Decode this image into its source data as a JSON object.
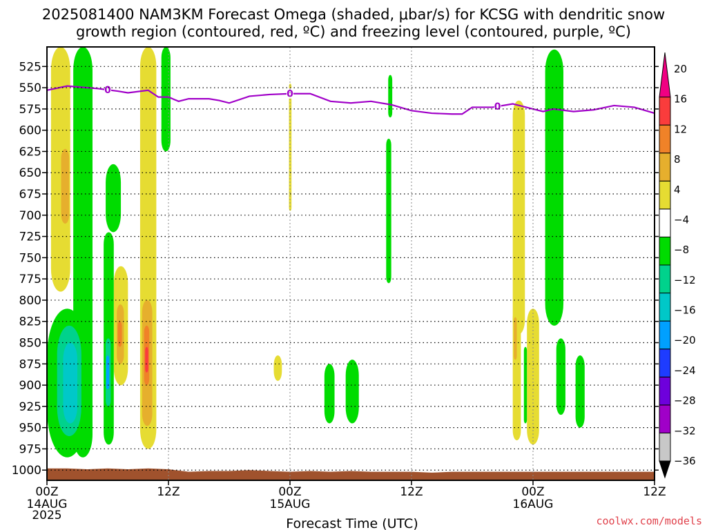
{
  "header": {
    "title_line1": "2025081400 NAM3KM Forecast Omega (shaded, μbar/s) for KCSG with dendritic snow",
    "title_line2": "growth region (contoured, red, ºC) and freezing level (contoured, purple, ºC)"
  },
  "credit": "coolwx.com/models",
  "chart_data": {
    "type": "heatmap",
    "xlabel": "Forecast Time (UTC)",
    "x_unit": "forecast hours from 2025-08-14 00Z",
    "xlim": [
      0,
      60
    ],
    "x_ticks": [
      {
        "hour": 0,
        "label": "00Z",
        "date": "14AUG",
        "year": "2025"
      },
      {
        "hour": 12,
        "label": "12Z"
      },
      {
        "hour": 24,
        "label": "00Z",
        "date": "15AUG"
      },
      {
        "hour": 36,
        "label": "12Z"
      },
      {
        "hour": 48,
        "label": "00Z",
        "date": "16AUG"
      },
      {
        "hour": 60,
        "label": "12Z"
      }
    ],
    "y_unit": "mb",
    "ylim": [
      1012,
      502
    ],
    "y_ticks": [
      525,
      550,
      575,
      600,
      625,
      650,
      675,
      700,
      725,
      750,
      775,
      800,
      825,
      850,
      875,
      900,
      925,
      950,
      975,
      1000
    ],
    "grid": true,
    "colorbar": {
      "levels": [
        -36,
        -32,
        -28,
        -24,
        -20,
        -16,
        -12,
        -8,
        -4,
        4,
        8,
        12,
        16,
        20
      ],
      "labels": [
        "20",
        "16",
        "12",
        "8",
        "4",
        "−4",
        "−8",
        "−12",
        "−16",
        "−20",
        "−24",
        "−28",
        "−32",
        "−36"
      ],
      "colors": [
        "#c8c8c8",
        "#a000c8",
        "#6e00dc",
        "#1e3cff",
        "#00a0ff",
        "#00c8c8",
        "#00d28c",
        "#00dc00",
        "#ffffff",
        "#e6dc32",
        "#e6af2d",
        "#f08228",
        "#fa3c3c",
        "#f00082"
      ]
    },
    "omega_regions": [
      {
        "color": "#e6dc32",
        "t": [
          0.4,
          2.3
        ],
        "p": [
          502,
          790
        ]
      },
      {
        "color": "#e6af2d",
        "t": [
          1.4,
          2.2
        ],
        "p": [
          622,
          710
        ]
      },
      {
        "color": "#e6dc32",
        "t": [
          6.6,
          8.0
        ],
        "p": [
          760,
          900
        ]
      },
      {
        "color": "#e6af2d",
        "t": [
          6.9,
          7.6
        ],
        "p": [
          805,
          875
        ]
      },
      {
        "color": "#f08228",
        "t": [
          7.0,
          7.4
        ],
        "p": [
          825,
          855
        ]
      },
      {
        "color": "#e6dc32",
        "t": [
          9.2,
          10.8
        ],
        "p": [
          502,
          975
        ]
      },
      {
        "color": "#e6af2d",
        "t": [
          9.4,
          10.4
        ],
        "p": [
          800,
          948
        ]
      },
      {
        "color": "#f08228",
        "t": [
          9.6,
          10.1
        ],
        "p": [
          830,
          900
        ]
      },
      {
        "color": "#fa3c3c",
        "t": [
          9.7,
          10.0
        ],
        "p": [
          855,
          885
        ]
      },
      {
        "color": "#e6dc32",
        "t": [
          22.4,
          23.2
        ],
        "p": [
          865,
          895
        ]
      },
      {
        "color": "#e6dc32",
        "t": [
          23.9,
          24.15
        ],
        "p": [
          545,
          695
        ]
      },
      {
        "color": "#e6dc32",
        "t": [
          46.0,
          47.2
        ],
        "p": [
          565,
          840
        ]
      },
      {
        "color": "#e6dc32",
        "t": [
          46.0,
          46.8
        ],
        "p": [
          810,
          965
        ]
      },
      {
        "color": "#e6af2d",
        "t": [
          46.1,
          46.4
        ],
        "p": [
          820,
          870
        ]
      },
      {
        "color": "#e6dc32",
        "t": [
          47.4,
          48.6
        ],
        "p": [
          810,
          970
        ]
      },
      {
        "color": "#e6dc32",
        "t": [
          47.6,
          48.1
        ],
        "p": [
          870,
          920
        ]
      },
      {
        "color": "#00dc00",
        "t": [
          2.6,
          4.5
        ],
        "p": [
          502,
          985
        ]
      },
      {
        "color": "#00dc00",
        "t": [
          0.0,
          4.0
        ],
        "p": [
          810,
          985
        ]
      },
      {
        "color": "#00d28c",
        "t": [
          1.0,
          3.4
        ],
        "p": [
          830,
          960
        ]
      },
      {
        "color": "#00c8c8",
        "t": [
          1.6,
          3.0
        ],
        "p": [
          850,
          945
        ]
      },
      {
        "color": "#00dc00",
        "t": [
          5.8,
          7.3
        ],
        "p": [
          640,
          720
        ]
      },
      {
        "color": "#00dc00",
        "t": [
          5.6,
          6.6
        ],
        "p": [
          720,
          970
        ]
      },
      {
        "color": "#00d28c",
        "t": [
          5.8,
          6.3
        ],
        "p": [
          845,
          925
        ]
      },
      {
        "color": "#00a0ff",
        "t": [
          5.85,
          6.15
        ],
        "p": [
          865,
          905
        ]
      },
      {
        "color": "#00dc00",
        "t": [
          11.3,
          12.2
        ],
        "p": [
          502,
          625
        ]
      },
      {
        "color": "#00dc00",
        "t": [
          27.4,
          28.4
        ],
        "p": [
          875,
          945
        ]
      },
      {
        "color": "#00dc00",
        "t": [
          29.5,
          30.8
        ],
        "p": [
          870,
          945
        ]
      },
      {
        "color": "#00dc00",
        "t": [
          33.5,
          34.0
        ],
        "p": [
          610,
          780
        ]
      },
      {
        "color": "#00dc00",
        "t": [
          33.7,
          34.1
        ],
        "p": [
          535,
          585
        ]
      },
      {
        "color": "#00dc00",
        "t": [
          49.2,
          51.0
        ],
        "p": [
          505,
          830
        ]
      },
      {
        "color": "#00dc00",
        "t": [
          47.1,
          47.4
        ],
        "p": [
          855,
          945
        ]
      },
      {
        "color": "#00dc00",
        "t": [
          50.3,
          51.2
        ],
        "p": [
          845,
          935
        ]
      },
      {
        "color": "#00dc00",
        "t": [
          52.2,
          53.1
        ],
        "p": [
          865,
          950
        ]
      }
    ],
    "freezing_level": {
      "color": "#a000c8",
      "label": "0",
      "label_hours": [
        6.0,
        24.0,
        44.5
      ],
      "hours": [
        0,
        2,
        3,
        5,
        7,
        8,
        10,
        11,
        12,
        13,
        14,
        16,
        17,
        18,
        20,
        22,
        24,
        26,
        28,
        30,
        32,
        34,
        36,
        38,
        40,
        41,
        42,
        44,
        46,
        47,
        48,
        49,
        50,
        52,
        54,
        56,
        58,
        60
      ],
      "pressure": [
        553,
        548,
        549,
        551,
        554,
        556,
        553,
        561,
        561,
        566,
        563,
        563,
        565,
        568,
        560,
        558,
        557,
        557,
        566,
        568,
        566,
        570,
        577,
        580,
        581,
        581,
        573,
        573,
        569,
        572,
        575,
        578,
        575,
        578,
        576,
        571,
        573,
        580
      ]
    },
    "ground": {
      "color": "#a0522d",
      "hours": [
        0,
        2,
        4,
        6,
        8,
        10,
        12,
        14,
        16,
        18,
        20,
        22,
        24,
        26,
        28,
        30,
        32,
        34,
        36,
        38,
        40,
        42,
        44,
        46,
        48,
        50,
        52,
        54,
        56,
        58,
        60
      ],
      "pressure": [
        998,
        998,
        999,
        998,
        999,
        998,
        999,
        1002,
        1001,
        1001,
        1000,
        1001,
        1002,
        1001,
        1002,
        1001,
        1002,
        1002,
        1002,
        1003,
        1002,
        1002,
        1002,
        1002,
        1002,
        1002,
        1002,
        1002,
        1002,
        1002,
        1002
      ]
    }
  }
}
